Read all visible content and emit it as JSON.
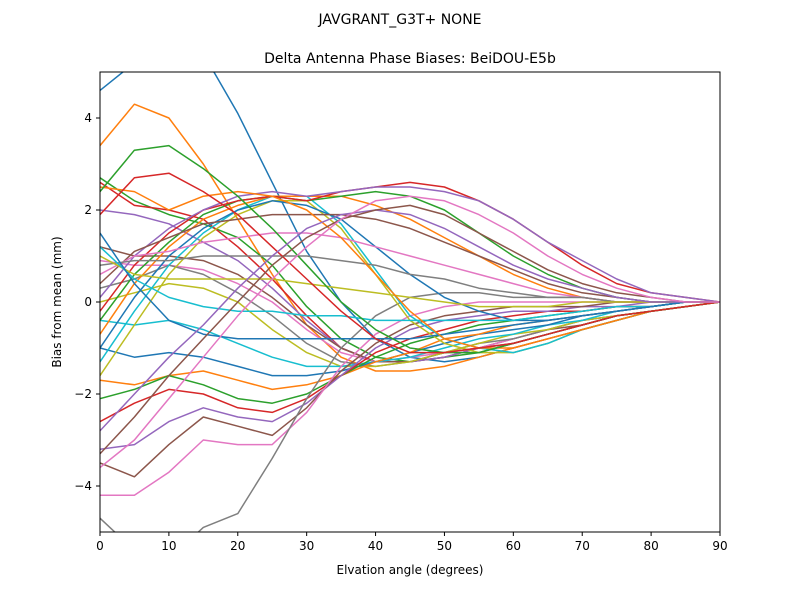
{
  "chart_data": {
    "type": "line",
    "suptitle": "JAVGRANT_G3T+   NONE",
    "title": "Delta Antenna Phase Biases: BeiDOU-E5b",
    "xlabel": "Elvation angle (degrees)",
    "ylabel": "Bias from mean (mm)",
    "xlim": [
      0,
      90
    ],
    "ylim": [
      -5,
      5
    ],
    "xticks": [
      0,
      10,
      20,
      30,
      40,
      50,
      60,
      70,
      80,
      90
    ],
    "yticks": [
      -4,
      -2,
      0,
      2,
      4
    ],
    "tick_labels_x": [
      "0",
      "10",
      "20",
      "30",
      "40",
      "50",
      "60",
      "70",
      "80",
      "90"
    ],
    "tick_labels_y": [
      "−4",
      "−2",
      "0",
      "2",
      "4"
    ],
    "grid": false,
    "legend": "none",
    "palette": [
      "#1f77b4",
      "#ff7f0e",
      "#2ca02c",
      "#d62728",
      "#9467bd",
      "#8c564b",
      "#e377c2",
      "#7f7f7f",
      "#bcbd22",
      "#17becf"
    ],
    "x": [
      0,
      5,
      10,
      15,
      20,
      25,
      30,
      35,
      40,
      45,
      50,
      55,
      60,
      65,
      70,
      75,
      80,
      85,
      90
    ],
    "series": [
      {
        "values": [
          4.6,
          5.2,
          5.9,
          5.4,
          4.1,
          2.6,
          1.1,
          0.0,
          -0.8,
          -1.2,
          -1.3,
          -1.2,
          -1.0,
          -0.8,
          -0.6,
          -0.4,
          -0.2,
          -0.1,
          0.0
        ]
      },
      {
        "values": [
          3.4,
          4.3,
          4.0,
          3.0,
          1.8,
          0.6,
          -0.5,
          -1.2,
          -1.5,
          -1.5,
          -1.4,
          -1.2,
          -1.0,
          -0.8,
          -0.6,
          -0.4,
          -0.2,
          -0.1,
          0.0
        ]
      },
      {
        "values": [
          2.7,
          2.2,
          1.9,
          1.7,
          1.4,
          0.8,
          -0.1,
          -0.8,
          -1.2,
          -1.3,
          -1.2,
          -1.1,
          -0.9,
          -0.7,
          -0.5,
          -0.3,
          -0.2,
          -0.1,
          0.0
        ]
      },
      {
        "values": [
          2.6,
          2.1,
          2.0,
          1.8,
          1.2,
          0.5,
          -0.3,
          -1.0,
          -1.3,
          -1.3,
          -1.2,
          -1.0,
          -0.9,
          -0.7,
          -0.5,
          -0.3,
          -0.2,
          -0.1,
          0.0
        ]
      },
      {
        "values": [
          2.0,
          1.9,
          1.7,
          1.3,
          0.9,
          0.3,
          -0.4,
          -1.0,
          -1.3,
          -1.3,
          -1.2,
          -1.0,
          -0.9,
          -0.7,
          -0.5,
          -0.3,
          -0.2,
          -0.1,
          0.0
        ]
      },
      {
        "values": [
          1.2,
          1.0,
          1.0,
          0.9,
          0.6,
          0.1,
          -0.5,
          -1.0,
          -1.3,
          -1.3,
          -1.1,
          -1.0,
          -0.8,
          -0.6,
          -0.5,
          -0.3,
          -0.2,
          -0.1,
          0.0
        ]
      },
      {
        "values": [
          0.9,
          0.8,
          0.8,
          0.7,
          0.4,
          0.0,
          -0.6,
          -1.1,
          -1.3,
          -1.2,
          -1.1,
          -1.0,
          -0.8,
          -0.6,
          -0.4,
          -0.3,
          -0.2,
          -0.1,
          0.0
        ]
      },
      {
        "values": [
          0.3,
          0.5,
          0.8,
          0.6,
          0.2,
          -0.3,
          -0.9,
          -1.3,
          -1.4,
          -1.3,
          -1.1,
          -0.9,
          -0.8,
          -0.6,
          -0.4,
          -0.3,
          -0.2,
          -0.1,
          0.0
        ]
      },
      {
        "values": [
          0.0,
          0.2,
          0.4,
          0.3,
          0.0,
          -0.6,
          -1.1,
          -1.4,
          -1.4,
          -1.3,
          -1.1,
          -0.9,
          -0.7,
          -0.6,
          -0.4,
          -0.3,
          -0.2,
          -0.1,
          0.0
        ]
      },
      {
        "values": [
          -0.4,
          -0.5,
          -0.4,
          -0.6,
          -0.9,
          -1.2,
          -1.4,
          -1.4,
          -1.3,
          -1.2,
          -1.0,
          -0.8,
          -0.7,
          -0.5,
          -0.4,
          -0.2,
          -0.1,
          0.0,
          0.0
        ]
      },
      {
        "values": [
          -1.0,
          -1.2,
          -1.1,
          -1.2,
          -1.4,
          -1.6,
          -1.6,
          -1.5,
          -1.3,
          -1.1,
          -0.9,
          -0.7,
          -0.6,
          -0.5,
          -0.3,
          -0.2,
          -0.1,
          0.0,
          0.0
        ]
      },
      {
        "values": [
          -1.7,
          -1.8,
          -1.6,
          -1.5,
          -1.7,
          -1.9,
          -1.8,
          -1.6,
          -1.3,
          -1.1,
          -0.8,
          -0.7,
          -0.5,
          -0.4,
          -0.3,
          -0.2,
          -0.1,
          0.0,
          0.0
        ]
      },
      {
        "values": [
          -2.1,
          -1.9,
          -1.6,
          -1.8,
          -2.1,
          -2.2,
          -2.0,
          -1.6,
          -1.2,
          -0.9,
          -0.7,
          -0.5,
          -0.4,
          -0.3,
          -0.2,
          -0.1,
          -0.1,
          0.0,
          0.0
        ]
      },
      {
        "values": [
          -2.6,
          -2.2,
          -1.9,
          -2.0,
          -2.3,
          -2.4,
          -2.1,
          -1.6,
          -1.1,
          -0.8,
          -0.6,
          -0.4,
          -0.3,
          -0.2,
          -0.2,
          -0.1,
          -0.1,
          0.0,
          0.0
        ]
      },
      {
        "values": [
          -3.2,
          -3.1,
          -2.6,
          -2.3,
          -2.5,
          -2.6,
          -2.2,
          -1.6,
          -1.0,
          -0.6,
          -0.4,
          -0.3,
          -0.2,
          -0.2,
          -0.1,
          -0.1,
          0.0,
          0.0,
          0.0
        ]
      },
      {
        "values": [
          -3.5,
          -3.8,
          -3.1,
          -2.5,
          -2.7,
          -2.9,
          -2.3,
          -1.5,
          -0.9,
          -0.5,
          -0.3,
          -0.2,
          -0.1,
          -0.1,
          -0.1,
          0.0,
          0.0,
          0.0,
          0.0
        ]
      },
      {
        "values": [
          -4.2,
          -4.2,
          -3.7,
          -3.0,
          -3.1,
          -3.1,
          -2.4,
          -1.4,
          -0.7,
          -0.3,
          -0.1,
          0.0,
          0.0,
          0.0,
          0.0,
          0.0,
          0.0,
          0.0,
          0.0
        ]
      },
      {
        "values": [
          -4.7,
          -5.4,
          -5.6,
          -4.9,
          -4.6,
          -3.4,
          -2.1,
          -1.0,
          -0.3,
          0.1,
          0.2,
          0.2,
          0.1,
          0.1,
          0.1,
          0.0,
          0.0,
          0.0,
          0.0
        ]
      },
      {
        "values": [
          -1.6,
          -0.5,
          0.6,
          1.4,
          1.9,
          2.2,
          2.2,
          1.6,
          0.6,
          -0.4,
          -0.9,
          -1.1,
          -1.1,
          -0.9,
          -0.6,
          -0.4,
          -0.2,
          -0.1,
          0.0
        ]
      },
      {
        "values": [
          -1.3,
          -0.2,
          0.8,
          1.5,
          2.0,
          2.3,
          2.3,
          1.7,
          0.7,
          -0.3,
          -0.8,
          -1.0,
          -1.1,
          -0.9,
          -0.6,
          -0.4,
          -0.2,
          -0.1,
          0.0
        ]
      },
      {
        "values": [
          -1.0,
          0.1,
          1.0,
          1.6,
          2.0,
          2.2,
          2.1,
          1.8,
          1.2,
          0.6,
          0.1,
          -0.2,
          -0.4,
          -0.4,
          -0.3,
          -0.2,
          -0.1,
          0.0,
          0.0
        ]
      },
      {
        "values": [
          -0.7,
          0.4,
          1.2,
          1.8,
          2.1,
          2.3,
          2.3,
          2.3,
          2.1,
          1.8,
          1.4,
          1.0,
          0.6,
          0.3,
          0.1,
          0.0,
          0.0,
          0.0,
          0.0
        ]
      },
      {
        "values": [
          -0.4,
          0.6,
          1.3,
          1.9,
          2.2,
          2.3,
          2.2,
          2.3,
          2.4,
          2.3,
          2.0,
          1.5,
          1.0,
          0.6,
          0.3,
          0.1,
          0.0,
          0.0,
          0.0
        ]
      },
      {
        "values": [
          -0.2,
          0.8,
          1.5,
          2.0,
          2.2,
          2.3,
          2.2,
          2.4,
          2.5,
          2.6,
          2.5,
          2.2,
          1.8,
          1.3,
          0.8,
          0.4,
          0.2,
          0.1,
          0.0
        ]
      },
      {
        "values": [
          0.1,
          1.0,
          1.6,
          2.0,
          2.3,
          2.4,
          2.3,
          2.4,
          2.5,
          2.5,
          2.4,
          2.2,
          1.8,
          1.3,
          0.9,
          0.5,
          0.2,
          0.1,
          0.0
        ]
      },
      {
        "values": [
          0.4,
          1.1,
          1.4,
          1.7,
          1.8,
          1.9,
          1.9,
          1.9,
          1.8,
          1.6,
          1.3,
          1.0,
          0.7,
          0.4,
          0.2,
          0.1,
          0.0,
          0.0,
          0.0
        ]
      },
      {
        "values": [
          0.6,
          1.0,
          1.1,
          1.3,
          1.4,
          1.5,
          1.5,
          1.4,
          1.2,
          1.0,
          0.8,
          0.6,
          0.4,
          0.2,
          0.1,
          0.0,
          0.0,
          0.0,
          0.0
        ]
      },
      {
        "values": [
          0.8,
          0.9,
          0.9,
          1.0,
          1.0,
          1.0,
          1.0,
          0.9,
          0.8,
          0.6,
          0.5,
          0.3,
          0.2,
          0.1,
          0.1,
          0.0,
          0.0,
          0.0,
          0.0
        ]
      },
      {
        "values": [
          1.0,
          0.6,
          0.5,
          0.5,
          0.5,
          0.5,
          0.4,
          0.3,
          0.2,
          0.1,
          0.0,
          -0.1,
          -0.1,
          -0.1,
          0.0,
          0.0,
          0.0,
          0.0,
          0.0
        ]
      },
      {
        "values": [
          1.2,
          0.5,
          0.1,
          -0.1,
          -0.2,
          -0.2,
          -0.3,
          -0.3,
          -0.4,
          -0.4,
          -0.4,
          -0.4,
          -0.4,
          -0.3,
          -0.2,
          -0.1,
          -0.1,
          0.0,
          0.0
        ]
      },
      {
        "values": [
          1.5,
          0.4,
          -0.4,
          -0.7,
          -0.8,
          -0.8,
          -0.8,
          -0.8,
          -0.8,
          -0.8,
          -0.7,
          -0.6,
          -0.5,
          -0.4,
          -0.3,
          -0.2,
          -0.1,
          0.0,
          0.0
        ]
      },
      {
        "values": [
          2.5,
          2.4,
          2.0,
          2.3,
          2.4,
          2.3,
          2.0,
          1.4,
          0.6,
          -0.2,
          -0.8,
          -1.0,
          -1.0,
          -0.8,
          -0.6,
          -0.4,
          -0.2,
          -0.1,
          0.0
        ]
      },
      {
        "values": [
          2.4,
          3.3,
          3.4,
          2.9,
          2.3,
          1.6,
          0.8,
          0.0,
          -0.6,
          -1.0,
          -1.1,
          -1.1,
          -0.9,
          -0.7,
          -0.5,
          -0.3,
          -0.2,
          -0.1,
          0.0
        ]
      },
      {
        "values": [
          1.9,
          2.7,
          2.8,
          2.4,
          1.9,
          1.2,
          0.5,
          -0.2,
          -0.8,
          -1.1,
          -1.1,
          -1.0,
          -0.9,
          -0.7,
          -0.5,
          -0.3,
          -0.2,
          -0.1,
          0.0
        ]
      },
      {
        "values": [
          -2.8,
          -2.0,
          -1.2,
          -0.5,
          0.3,
          1.0,
          1.6,
          1.9,
          2.0,
          1.9,
          1.6,
          1.2,
          0.8,
          0.5,
          0.3,
          0.1,
          0.0,
          0.0,
          0.0
        ]
      },
      {
        "values": [
          -3.3,
          -2.5,
          -1.6,
          -0.8,
          0.0,
          0.8,
          1.4,
          1.8,
          2.0,
          2.1,
          1.9,
          1.5,
          1.1,
          0.7,
          0.4,
          0.2,
          0.1,
          0.0,
          0.0
        ]
      },
      {
        "values": [
          -3.6,
          -3.0,
          -2.1,
          -1.2,
          -0.3,
          0.5,
          1.2,
          1.8,
          2.2,
          2.3,
          2.2,
          1.9,
          1.5,
          1.0,
          0.6,
          0.3,
          0.1,
          0.0,
          0.0
        ]
      }
    ]
  },
  "labels": {
    "suptitle": "JAVGRANT_G3T+   NONE",
    "title": "Delta Antenna Phase Biases: BeiDOU-E5b",
    "xlabel": "Elvation angle (degrees)",
    "ylabel": "Bias from mean (mm)"
  }
}
